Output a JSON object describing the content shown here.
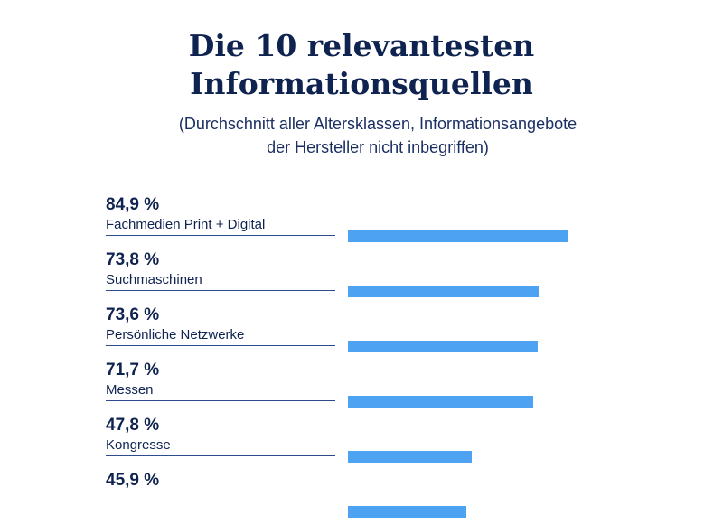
{
  "title_lines": [
    "Die 10 relevantesten",
    "Informationsquellen"
  ],
  "subtitle_lines": [
    "(Durchschnitt aller Altersklassen, Informationsangebote",
    "der Hersteller nicht inbegriffen)"
  ],
  "colors": {
    "text": "#0f2350",
    "bar": "#4da3f2",
    "rule": "#2d4c8c"
  },
  "chart_data": {
    "type": "bar",
    "orientation": "horizontal",
    "title": "Die 10 relevantesten Informationsquellen",
    "subtitle": "(Durchschnitt aller Altersklassen, Informationsangebote der Hersteller nicht inbegriffen)",
    "unit": "%",
    "xlim": [
      0,
      100
    ],
    "grid": false,
    "legend": "none",
    "items": [
      {
        "value_label": "84,9 %",
        "category": "Fachmedien Print + Digital",
        "value": 84.9
      },
      {
        "value_label": "73,8 %",
        "category": "Suchmaschinen",
        "value": 73.8
      },
      {
        "value_label": "73,6 %",
        "category": "Persönliche Netzwerke",
        "value": 73.6
      },
      {
        "value_label": "71,7 %",
        "category": "Messen",
        "value": 71.7
      },
      {
        "value_label": "47,8 %",
        "category": "Kongresse",
        "value": 47.8
      },
      {
        "value_label": "45,9 %",
        "category": "",
        "value": 45.9
      }
    ]
  }
}
